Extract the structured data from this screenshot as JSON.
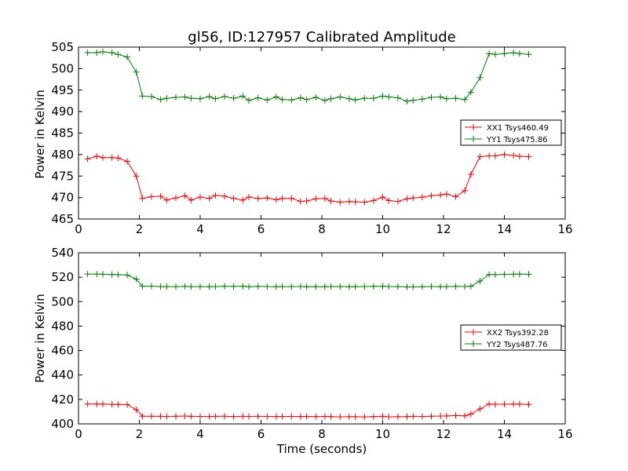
{
  "chart_data": [
    {
      "type": "line",
      "title": "gl56, ID:127957 Calibrated Amplitude",
      "xlabel": "",
      "ylabel": "Power in Kelvin",
      "xlim": [
        0,
        16
      ],
      "ylim": [
        465,
        505
      ],
      "xticks": [
        "0",
        "2",
        "4",
        "6",
        "8",
        "10",
        "12",
        "14",
        "16"
      ],
      "yticks": [
        "465",
        "470",
        "475",
        "480",
        "485",
        "490",
        "495",
        "500",
        "505"
      ],
      "legend_position": "center-right",
      "x": [
        0.3,
        0.6,
        0.8,
        1.1,
        1.3,
        1.6,
        1.9,
        2.1,
        2.4,
        2.7,
        2.9,
        3.2,
        3.5,
        3.7,
        4.0,
        4.3,
        4.5,
        4.8,
        5.1,
        5.4,
        5.6,
        5.9,
        6.2,
        6.5,
        6.7,
        7.0,
        7.3,
        7.5,
        7.8,
        8.1,
        8.3,
        8.6,
        8.9,
        9.1,
        9.4,
        9.7,
        10.0,
        10.2,
        10.5,
        10.8,
        11.0,
        11.3,
        11.6,
        11.9,
        12.1,
        12.4,
        12.7,
        12.9,
        13.2,
        13.5,
        13.7,
        14.0,
        14.3,
        14.5,
        14.8
      ],
      "series": [
        {
          "name": "XX1 Tsys460.49",
          "color": "#ff0000",
          "values": [
            479.0,
            479.6,
            479.3,
            479.3,
            479.2,
            478.4,
            475.0,
            469.8,
            470.2,
            470.3,
            469.4,
            469.9,
            470.4,
            469.4,
            470.1,
            469.8,
            470.5,
            470.3,
            469.8,
            469.4,
            470.1,
            469.8,
            469.9,
            469.5,
            469.8,
            469.8,
            469.1,
            469.2,
            469.7,
            469.8,
            469.2,
            468.9,
            469.1,
            469.0,
            468.9,
            469.3,
            470.1,
            469.3,
            469.1,
            469.7,
            469.9,
            470.1,
            470.4,
            470.6,
            470.8,
            470.2,
            471.6,
            475.4,
            479.5,
            479.7,
            479.7,
            480.0,
            479.8,
            479.6,
            479.5
          ]
        },
        {
          "name": "YY1 Tsys475.86",
          "color": "#008000",
          "values": [
            503.7,
            503.7,
            503.9,
            503.7,
            503.3,
            502.7,
            499.2,
            493.6,
            493.5,
            492.8,
            493.1,
            493.3,
            493.4,
            493.1,
            493.0,
            493.5,
            493.0,
            493.5,
            493.1,
            493.6,
            492.6,
            493.2,
            492.7,
            493.4,
            492.8,
            492.7,
            493.2,
            492.8,
            493.3,
            492.6,
            493.0,
            493.4,
            493.0,
            492.7,
            493.1,
            493.1,
            493.6,
            493.4,
            493.2,
            492.4,
            492.6,
            492.9,
            493.3,
            493.4,
            493.0,
            493.1,
            492.8,
            494.5,
            497.9,
            503.5,
            503.3,
            503.5,
            503.7,
            503.5,
            503.3
          ]
        }
      ]
    },
    {
      "type": "line",
      "title": "",
      "xlabel": "Time (seconds)",
      "ylabel": "Power in Kelvin",
      "xlim": [
        0,
        16
      ],
      "ylim": [
        400,
        540
      ],
      "xticks": [
        "0",
        "2",
        "4",
        "6",
        "8",
        "10",
        "12",
        "14",
        "16"
      ],
      "yticks": [
        "400",
        "420",
        "440",
        "460",
        "480",
        "500",
        "520",
        "540"
      ],
      "legend_position": "center-right",
      "x": [
        0.3,
        0.6,
        0.8,
        1.1,
        1.3,
        1.6,
        1.9,
        2.1,
        2.4,
        2.7,
        2.9,
        3.2,
        3.5,
        3.7,
        4.0,
        4.3,
        4.5,
        4.8,
        5.1,
        5.4,
        5.6,
        5.9,
        6.2,
        6.5,
        6.7,
        7.0,
        7.3,
        7.5,
        7.8,
        8.1,
        8.3,
        8.6,
        8.9,
        9.1,
        9.4,
        9.7,
        10.0,
        10.2,
        10.5,
        10.8,
        11.0,
        11.3,
        11.6,
        11.9,
        12.1,
        12.4,
        12.7,
        12.9,
        13.2,
        13.5,
        13.7,
        14.0,
        14.3,
        14.5,
        14.8
      ],
      "series": [
        {
          "name": "XX2 Tsys392.28",
          "color": "#ff0000",
          "values": [
            416.3,
            416.3,
            416.2,
            416.0,
            415.9,
            415.7,
            411.6,
            406.3,
            406.3,
            406.2,
            406.1,
            406.3,
            406.4,
            406.2,
            406.1,
            406.0,
            406.2,
            406.3,
            406.0,
            406.2,
            406.1,
            406.2,
            406.1,
            406.0,
            406.1,
            406.1,
            406.0,
            406.1,
            406.0,
            406.1,
            406.0,
            405.8,
            405.9,
            405.9,
            405.7,
            406.0,
            406.3,
            405.8,
            405.9,
            406.0,
            406.2,
            406.1,
            406.3,
            406.4,
            406.5,
            406.8,
            406.6,
            408.0,
            412.2,
            416.3,
            416.0,
            416.1,
            416.2,
            416.2,
            415.9
          ]
        },
        {
          "name": "YY2 Tsys487.76",
          "color": "#008000",
          "values": [
            522.6,
            522.6,
            522.4,
            522.2,
            522.1,
            521.8,
            518.5,
            512.6,
            512.7,
            512.3,
            512.3,
            512.3,
            512.5,
            512.3,
            512.3,
            512.2,
            512.4,
            512.6,
            512.5,
            512.6,
            512.2,
            512.5,
            512.4,
            512.2,
            512.3,
            512.3,
            512.4,
            512.2,
            512.3,
            512.2,
            512.4,
            512.3,
            512.2,
            512.2,
            512.4,
            512.5,
            512.6,
            512.4,
            512.3,
            512.1,
            512.1,
            512.2,
            512.4,
            512.2,
            512.3,
            512.5,
            512.4,
            512.6,
            516.8,
            522.2,
            522.1,
            522.3,
            522.4,
            522.5,
            522.4
          ]
        }
      ]
    }
  ]
}
